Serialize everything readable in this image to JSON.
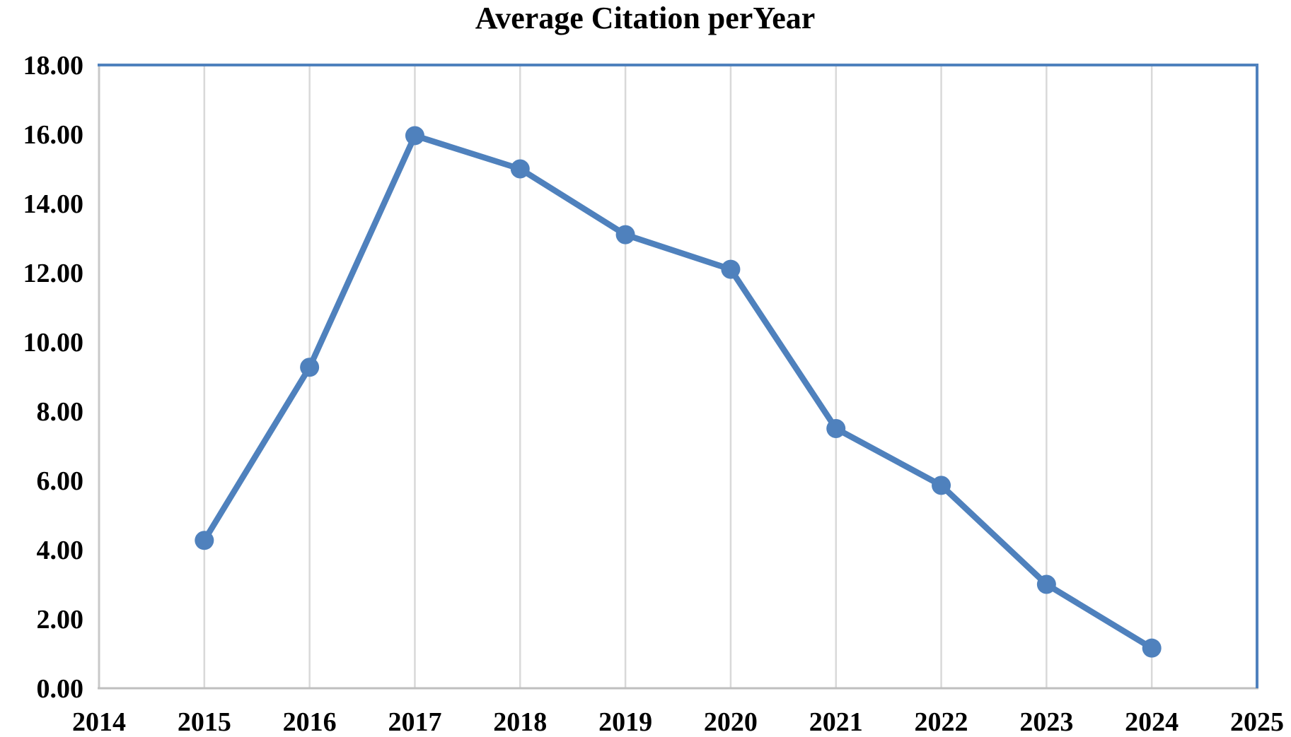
{
  "chart_data": {
    "type": "line",
    "title": "Average Citation perYear",
    "x": [
      2015,
      2016,
      2017,
      2018,
      2019,
      2020,
      2021,
      2022,
      2023,
      2024
    ],
    "values": [
      4.27,
      9.27,
      15.96,
      15.0,
      13.1,
      12.1,
      7.5,
      5.86,
      3.0,
      1.16
    ],
    "x_axis": {
      "min": 2014,
      "max": 2025,
      "tick_labels": [
        "2014",
        "2015",
        "2016",
        "2017",
        "2018",
        "2019",
        "2020",
        "2021",
        "2022",
        "2023",
        "2024",
        "2025"
      ]
    },
    "y_axis": {
      "min": 0,
      "max": 18,
      "step": 2,
      "tick_labels": [
        "0.00",
        "2.00",
        "4.00",
        "6.00",
        "8.00",
        "10.00",
        "12.00",
        "14.00",
        "16.00",
        "18.00"
      ]
    },
    "ylim": [
      0,
      18
    ],
    "legend": "none",
    "gridlines": "vertical-only",
    "marker": "circle",
    "colors": {
      "line": "#4F81BD",
      "marker": "#4F81BD",
      "gridline": "#D9D9D9",
      "axis_gray": "#BFBFBF",
      "border_blue": "#4F81BD",
      "text": "#000000",
      "background": "#FFFFFF"
    }
  }
}
